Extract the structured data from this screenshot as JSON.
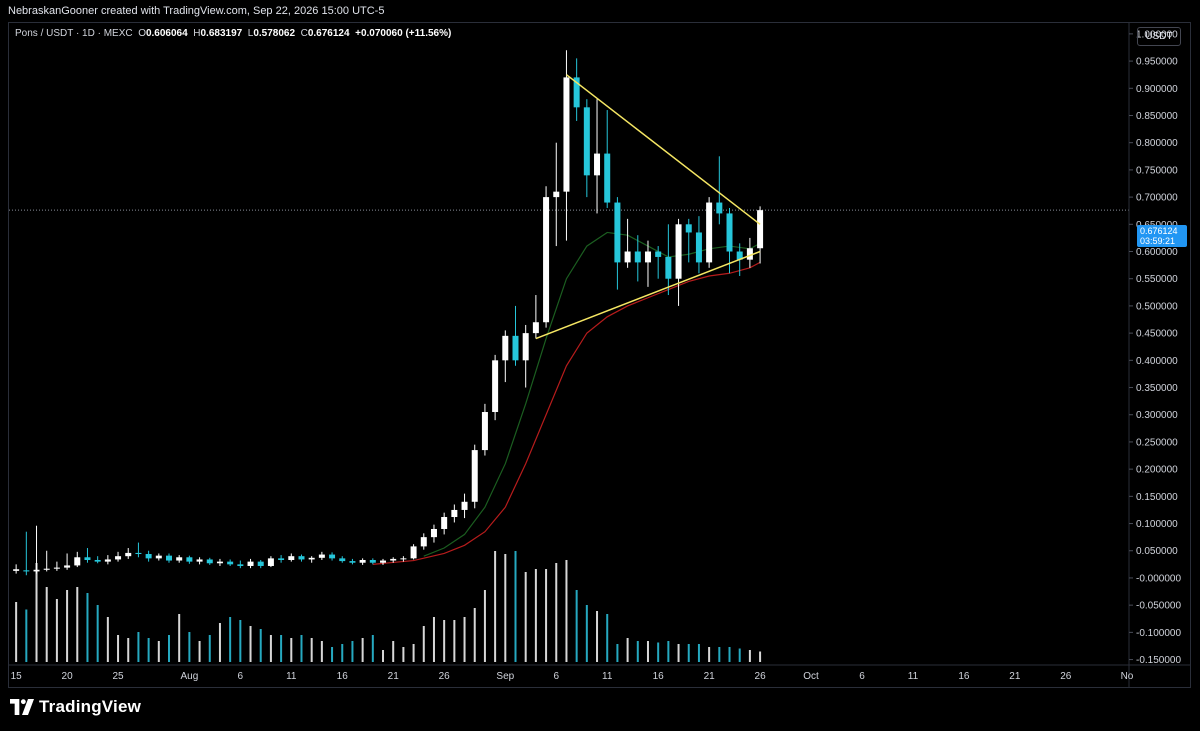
{
  "header": {
    "attribution": "NebraskanGooner created with TradingView.com, Sep 22, 2026 15:00 UTC-5"
  },
  "legend": {
    "symbol": "Pons / USDT · 1D · MEXC",
    "open_label": "O",
    "open": "0.606064",
    "high_label": "H",
    "high": "0.683197",
    "low_label": "L",
    "low": "0.578062",
    "close_label": "C",
    "close": "0.676124",
    "change": "+0.070060 (+11.56%)"
  },
  "currency": "USDT",
  "last_price": {
    "price": "0.676124",
    "countdown": "03:59:21"
  },
  "footer": {
    "brand": "TradingView"
  },
  "colors": {
    "background": "#000000",
    "up_candle": "#ffffff",
    "down_candle": "#26c6da",
    "ma_fast": "#1b5e20",
    "ma_slow": "#b71c1c",
    "triangle": "#f5e663",
    "price_tag": "#2196f3"
  },
  "chart_data": {
    "type": "candlestick",
    "interval": "1D",
    "y_axis_ticks": [
      "1.000000",
      "0.950000",
      "0.900000",
      "0.850000",
      "0.800000",
      "0.750000",
      "0.700000",
      "0.650000",
      "0.600000",
      "0.550000",
      "0.500000",
      "0.450000",
      "0.400000",
      "0.350000",
      "0.300000",
      "0.250000",
      "0.200000",
      "0.150000",
      "0.100000",
      "0.050000",
      "-0.000000",
      "-0.050000",
      "-0.100000",
      "-0.150000"
    ],
    "ylim": [
      -0.16,
      1.02
    ],
    "x_axis_labels": [
      {
        "text": "15",
        "day": 15
      },
      {
        "text": "20",
        "day": 20
      },
      {
        "text": "25",
        "day": 25
      },
      {
        "text": "Aug",
        "day": 32
      },
      {
        "text": "6",
        "day": 37
      },
      {
        "text": "11",
        "day": 42
      },
      {
        "text": "16",
        "day": 47
      },
      {
        "text": "21",
        "day": 52
      },
      {
        "text": "26",
        "day": 57
      },
      {
        "text": "Sep",
        "day": 63
      },
      {
        "text": "6",
        "day": 68
      },
      {
        "text": "11",
        "day": 73
      },
      {
        "text": "16",
        "day": 78
      },
      {
        "text": "21",
        "day": 83
      },
      {
        "text": "26",
        "day": 88
      },
      {
        "text": "Oct",
        "day": 93
      },
      {
        "text": "6",
        "day": 98
      },
      {
        "text": "11",
        "day": 103
      },
      {
        "text": "16",
        "day": 108
      },
      {
        "text": "21",
        "day": 113
      },
      {
        "text": "26",
        "day": 118
      },
      {
        "text": "No",
        "day": 124
      }
    ],
    "x_range_days": [
      14.3,
      124.2
    ],
    "candles_note": "day index: Jul 1 = 1",
    "candles": [
      {
        "d": 15,
        "o": 0.013,
        "h": 0.025,
        "l": 0.008,
        "c": 0.016
      },
      {
        "d": 16,
        "o": 0.014,
        "h": 0.085,
        "l": 0.005,
        "c": 0.012
      },
      {
        "d": 17,
        "o": 0.012,
        "h": 0.096,
        "l": 0.008,
        "c": 0.015
      },
      {
        "d": 18,
        "o": 0.015,
        "h": 0.05,
        "l": 0.012,
        "c": 0.017
      },
      {
        "d": 19,
        "o": 0.017,
        "h": 0.03,
        "l": 0.013,
        "c": 0.019
      },
      {
        "d": 20,
        "o": 0.019,
        "h": 0.045,
        "l": 0.015,
        "c": 0.023
      },
      {
        "d": 21,
        "o": 0.023,
        "h": 0.048,
        "l": 0.02,
        "c": 0.038
      },
      {
        "d": 22,
        "o": 0.038,
        "h": 0.055,
        "l": 0.028,
        "c": 0.033
      },
      {
        "d": 23,
        "o": 0.033,
        "h": 0.04,
        "l": 0.027,
        "c": 0.03
      },
      {
        "d": 24,
        "o": 0.03,
        "h": 0.042,
        "l": 0.025,
        "c": 0.034
      },
      {
        "d": 25,
        "o": 0.034,
        "h": 0.048,
        "l": 0.03,
        "c": 0.04
      },
      {
        "d": 26,
        "o": 0.04,
        "h": 0.055,
        "l": 0.035,
        "c": 0.046
      },
      {
        "d": 27,
        "o": 0.046,
        "h": 0.065,
        "l": 0.038,
        "c": 0.044
      },
      {
        "d": 28,
        "o": 0.044,
        "h": 0.05,
        "l": 0.03,
        "c": 0.036
      },
      {
        "d": 29,
        "o": 0.036,
        "h": 0.045,
        "l": 0.032,
        "c": 0.041
      },
      {
        "d": 30,
        "o": 0.041,
        "h": 0.045,
        "l": 0.028,
        "c": 0.032
      },
      {
        "d": 31,
        "o": 0.032,
        "h": 0.042,
        "l": 0.028,
        "c": 0.038
      },
      {
        "d": 32,
        "o": 0.038,
        "h": 0.041,
        "l": 0.026,
        "c": 0.03
      },
      {
        "d": 33,
        "o": 0.03,
        "h": 0.038,
        "l": 0.025,
        "c": 0.034
      },
      {
        "d": 34,
        "o": 0.034,
        "h": 0.037,
        "l": 0.024,
        "c": 0.027
      },
      {
        "d": 35,
        "o": 0.027,
        "h": 0.035,
        "l": 0.022,
        "c": 0.03
      },
      {
        "d": 36,
        "o": 0.03,
        "h": 0.034,
        "l": 0.022,
        "c": 0.025
      },
      {
        "d": 37,
        "o": 0.025,
        "h": 0.032,
        "l": 0.018,
        "c": 0.022
      },
      {
        "d": 38,
        "o": 0.022,
        "h": 0.035,
        "l": 0.018,
        "c": 0.03
      },
      {
        "d": 39,
        "o": 0.03,
        "h": 0.033,
        "l": 0.018,
        "c": 0.022
      },
      {
        "d": 40,
        "o": 0.022,
        "h": 0.04,
        "l": 0.02,
        "c": 0.036
      },
      {
        "d": 41,
        "o": 0.036,
        "h": 0.042,
        "l": 0.028,
        "c": 0.033
      },
      {
        "d": 42,
        "o": 0.033,
        "h": 0.045,
        "l": 0.03,
        "c": 0.04
      },
      {
        "d": 43,
        "o": 0.04,
        "h": 0.043,
        "l": 0.03,
        "c": 0.034
      },
      {
        "d": 44,
        "o": 0.034,
        "h": 0.04,
        "l": 0.028,
        "c": 0.037
      },
      {
        "d": 45,
        "o": 0.037,
        "h": 0.048,
        "l": 0.033,
        "c": 0.043
      },
      {
        "d": 46,
        "o": 0.043,
        "h": 0.047,
        "l": 0.032,
        "c": 0.036
      },
      {
        "d": 47,
        "o": 0.036,
        "h": 0.04,
        "l": 0.028,
        "c": 0.031
      },
      {
        "d": 48,
        "o": 0.031,
        "h": 0.035,
        "l": 0.025,
        "c": 0.028
      },
      {
        "d": 49,
        "o": 0.028,
        "h": 0.036,
        "l": 0.024,
        "c": 0.033
      },
      {
        "d": 50,
        "o": 0.033,
        "h": 0.036,
        "l": 0.025,
        "c": 0.028
      },
      {
        "d": 51,
        "o": 0.028,
        "h": 0.035,
        "l": 0.024,
        "c": 0.032
      },
      {
        "d": 52,
        "o": 0.032,
        "h": 0.038,
        "l": 0.028,
        "c": 0.035
      },
      {
        "d": 53,
        "o": 0.035,
        "h": 0.04,
        "l": 0.03,
        "c": 0.036
      },
      {
        "d": 54,
        "o": 0.036,
        "h": 0.062,
        "l": 0.034,
        "c": 0.058
      },
      {
        "d": 55,
        "o": 0.058,
        "h": 0.082,
        "l": 0.052,
        "c": 0.075
      },
      {
        "d": 56,
        "o": 0.075,
        "h": 0.098,
        "l": 0.065,
        "c": 0.09
      },
      {
        "d": 57,
        "o": 0.09,
        "h": 0.12,
        "l": 0.08,
        "c": 0.112
      },
      {
        "d": 58,
        "o": 0.112,
        "h": 0.135,
        "l": 0.102,
        "c": 0.125
      },
      {
        "d": 59,
        "o": 0.125,
        "h": 0.155,
        "l": 0.11,
        "c": 0.14
      },
      {
        "d": 60,
        "o": 0.14,
        "h": 0.245,
        "l": 0.128,
        "c": 0.235
      },
      {
        "d": 61,
        "o": 0.235,
        "h": 0.32,
        "l": 0.225,
        "c": 0.305
      },
      {
        "d": 62,
        "o": 0.305,
        "h": 0.41,
        "l": 0.29,
        "c": 0.4
      },
      {
        "d": 63,
        "o": 0.4,
        "h": 0.455,
        "l": 0.36,
        "c": 0.445
      },
      {
        "d": 64,
        "o": 0.445,
        "h": 0.5,
        "l": 0.39,
        "c": 0.4
      },
      {
        "d": 65,
        "o": 0.4,
        "h": 0.465,
        "l": 0.35,
        "c": 0.45
      },
      {
        "d": 66,
        "o": 0.45,
        "h": 0.52,
        "l": 0.44,
        "c": 0.47
      },
      {
        "d": 67,
        "o": 0.47,
        "h": 0.72,
        "l": 0.46,
        "c": 0.7
      },
      {
        "d": 68,
        "o": 0.7,
        "h": 0.8,
        "l": 0.61,
        "c": 0.71
      },
      {
        "d": 69,
        "o": 0.71,
        "h": 0.97,
        "l": 0.62,
        "c": 0.92
      },
      {
        "d": 70,
        "o": 0.92,
        "h": 0.955,
        "l": 0.84,
        "c": 0.865
      },
      {
        "d": 71,
        "o": 0.865,
        "h": 0.88,
        "l": 0.7,
        "c": 0.74
      },
      {
        "d": 72,
        "o": 0.74,
        "h": 0.88,
        "l": 0.67,
        "c": 0.78
      },
      {
        "d": 73,
        "o": 0.78,
        "h": 0.86,
        "l": 0.68,
        "c": 0.69
      },
      {
        "d": 74,
        "o": 0.69,
        "h": 0.7,
        "l": 0.53,
        "c": 0.58
      },
      {
        "d": 75,
        "o": 0.58,
        "h": 0.66,
        "l": 0.57,
        "c": 0.6
      },
      {
        "d": 76,
        "o": 0.6,
        "h": 0.63,
        "l": 0.545,
        "c": 0.58
      },
      {
        "d": 77,
        "o": 0.58,
        "h": 0.62,
        "l": 0.535,
        "c": 0.6
      },
      {
        "d": 78,
        "o": 0.6,
        "h": 0.61,
        "l": 0.55,
        "c": 0.59
      },
      {
        "d": 79,
        "o": 0.59,
        "h": 0.65,
        "l": 0.52,
        "c": 0.55
      },
      {
        "d": 80,
        "o": 0.55,
        "h": 0.66,
        "l": 0.5,
        "c": 0.65
      },
      {
        "d": 81,
        "o": 0.65,
        "h": 0.66,
        "l": 0.58,
        "c": 0.635
      },
      {
        "d": 82,
        "o": 0.635,
        "h": 0.665,
        "l": 0.56,
        "c": 0.58
      },
      {
        "d": 83,
        "o": 0.58,
        "h": 0.7,
        "l": 0.57,
        "c": 0.69
      },
      {
        "d": 84,
        "o": 0.69,
        "h": 0.775,
        "l": 0.65,
        "c": 0.67
      },
      {
        "d": 85,
        "o": 0.67,
        "h": 0.68,
        "l": 0.56,
        "c": 0.6
      },
      {
        "d": 86,
        "o": 0.6,
        "h": 0.615,
        "l": 0.555,
        "c": 0.585
      },
      {
        "d": 87,
        "o": 0.585,
        "h": 0.625,
        "l": 0.57,
        "c": 0.606
      },
      {
        "d": 88,
        "o": 0.606,
        "h": 0.683,
        "l": 0.578,
        "c": 0.676
      }
    ],
    "volume_note": "relative bar height 0-1, color follows candle direction",
    "volume": [
      0.4,
      0.35,
      0.66,
      0.5,
      0.42,
      0.48,
      0.5,
      0.46,
      0.38,
      0.3,
      0.18,
      0.16,
      0.2,
      0.16,
      0.14,
      0.18,
      0.32,
      0.2,
      0.14,
      0.18,
      0.26,
      0.3,
      0.28,
      0.24,
      0.22,
      0.18,
      0.18,
      0.16,
      0.18,
      0.16,
      0.14,
      0.1,
      0.12,
      0.14,
      0.16,
      0.18,
      0.08,
      0.14,
      0.1,
      0.12,
      0.24,
      0.3,
      0.28,
      0.28,
      0.3,
      0.36,
      0.48,
      0.74,
      0.72,
      0.74,
      0.6,
      0.62,
      0.62,
      0.66,
      0.68,
      0.48,
      0.38,
      0.34,
      0.32,
      0.12,
      0.16,
      0.14,
      0.14,
      0.13,
      0.14,
      0.12,
      0.12,
      0.12,
      0.1,
      0.1,
      0.1,
      0.09,
      0.08,
      0.07
    ],
    "ma_fast": [
      [
        55,
        0.04
      ],
      [
        57,
        0.055
      ],
      [
        59,
        0.08
      ],
      [
        61,
        0.13
      ],
      [
        63,
        0.21
      ],
      [
        65,
        0.32
      ],
      [
        67,
        0.44
      ],
      [
        69,
        0.55
      ],
      [
        71,
        0.61
      ],
      [
        73,
        0.635
      ],
      [
        75,
        0.63
      ],
      [
        77,
        0.61
      ],
      [
        79,
        0.59
      ],
      [
        81,
        0.595
      ],
      [
        83,
        0.605
      ],
      [
        85,
        0.61
      ],
      [
        87,
        0.605
      ],
      [
        88,
        0.615
      ]
    ],
    "ma_slow": [
      [
        50,
        0.025
      ],
      [
        54,
        0.032
      ],
      [
        57,
        0.045
      ],
      [
        59,
        0.06
      ],
      [
        61,
        0.085
      ],
      [
        63,
        0.13
      ],
      [
        65,
        0.21
      ],
      [
        67,
        0.3
      ],
      [
        69,
        0.39
      ],
      [
        71,
        0.45
      ],
      [
        73,
        0.48
      ],
      [
        75,
        0.5
      ],
      [
        77,
        0.515
      ],
      [
        79,
        0.53
      ],
      [
        81,
        0.545
      ],
      [
        83,
        0.555
      ],
      [
        85,
        0.56
      ],
      [
        87,
        0.57
      ],
      [
        88,
        0.58
      ]
    ],
    "triangle_upper": [
      [
        69,
        0.925
      ],
      [
        88,
        0.65
      ]
    ],
    "triangle_lower": [
      [
        66,
        0.44
      ],
      [
        88,
        0.6
      ]
    ],
    "current_price_line": 0.676
  }
}
